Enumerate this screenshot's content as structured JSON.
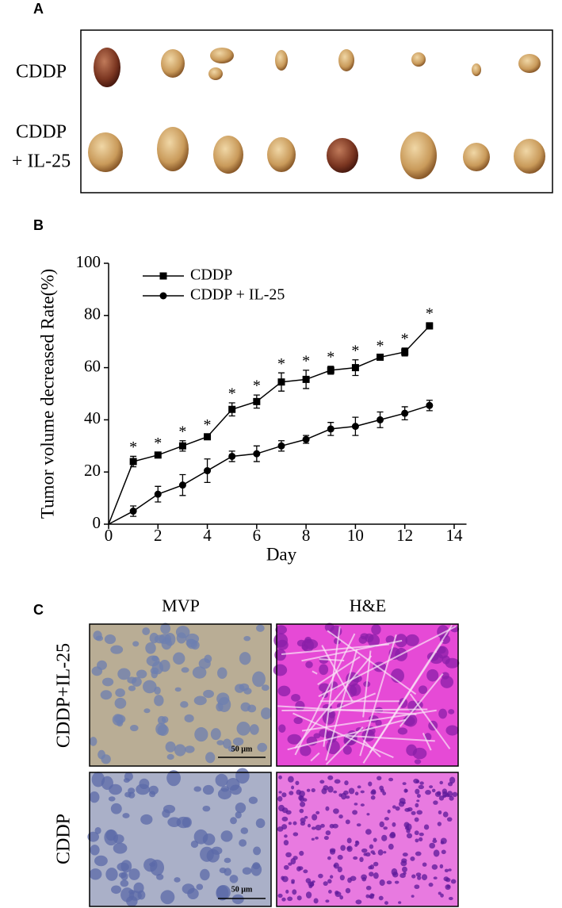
{
  "panels": {
    "a": {
      "label": "A",
      "rows": [
        "CDDP",
        "CDDP",
        "+ IL-25"
      ]
    },
    "b": {
      "label": "B"
    },
    "c": {
      "label": "C",
      "columns": [
        "MVP",
        "H&E"
      ],
      "rows": [
        "CDDP+IL-25",
        "CDDP"
      ],
      "scale_bars": [
        "50 µm",
        "50 µm"
      ]
    }
  },
  "chart_data": {
    "type": "line",
    "ylabel": "Tumor volume decreased Rate(%)",
    "xlabel": "Day",
    "x": [
      0,
      1,
      2,
      3,
      4,
      5,
      6,
      7,
      8,
      9,
      10,
      11,
      12,
      13
    ],
    "xlim": [
      0,
      14.5
    ],
    "xticks": [
      0,
      2,
      4,
      6,
      8,
      10,
      12,
      14
    ],
    "ylim": [
      0,
      100
    ],
    "yticks": [
      0,
      20,
      40,
      60,
      80,
      100
    ],
    "legend": "upper left",
    "series": [
      {
        "name": "CDDP",
        "color": "#000000",
        "marker": "square",
        "values": [
          0,
          24,
          26.5,
          30,
          33.5,
          44,
          47,
          54.5,
          55.5,
          59,
          60,
          64,
          66,
          76
        ],
        "errors": [
          0,
          2,
          1,
          2,
          1,
          2.5,
          2.5,
          3.5,
          3.5,
          1.5,
          3,
          0.8,
          1.5,
          1.2
        ]
      },
      {
        "name": "CDDP + IL-25",
        "color": "#000000",
        "marker": "circle",
        "values": [
          0,
          5,
          11.5,
          15,
          20.5,
          26,
          27,
          30,
          32.5,
          36.5,
          37.5,
          40,
          42.5,
          45.5
        ],
        "errors": [
          0,
          2,
          3,
          4,
          4.5,
          2,
          3,
          2,
          1.5,
          2.5,
          3.5,
          3,
          2.5,
          2
        ]
      }
    ],
    "annotations": [
      {
        "text": "*",
        "x": 1
      },
      {
        "text": "*",
        "x": 2
      },
      {
        "text": "*",
        "x": 3
      },
      {
        "text": "*",
        "x": 4
      },
      {
        "text": "*",
        "x": 5
      },
      {
        "text": "*",
        "x": 6
      },
      {
        "text": "*",
        "x": 7
      },
      {
        "text": "*",
        "x": 8
      },
      {
        "text": "*",
        "x": 9
      },
      {
        "text": "*",
        "x": 10
      },
      {
        "text": "*",
        "x": 11
      },
      {
        "text": "*",
        "x": 12
      },
      {
        "text": "*",
        "x": 13
      }
    ]
  }
}
